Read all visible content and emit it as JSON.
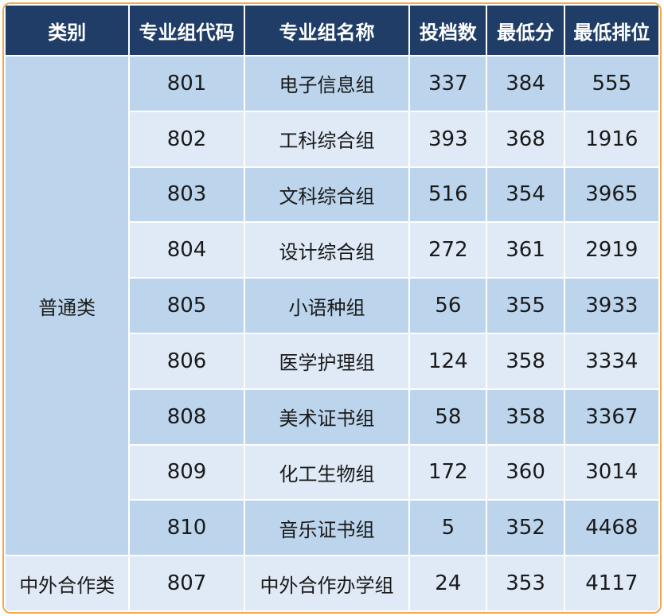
{
  "headers": {
    "category": "类别",
    "code": "专业组代码",
    "name": "专业组名称",
    "count": "投档数",
    "min_score": "最低分",
    "min_rank": "最低排位"
  },
  "categories": {
    "general": "普通类",
    "sino_foreign": "中外合作类"
  },
  "rows": [
    {
      "code": "801",
      "name": "电子信息组",
      "count": "337",
      "min_score": "384",
      "min_rank": "555"
    },
    {
      "code": "802",
      "name": "工科综合组",
      "count": "393",
      "min_score": "368",
      "min_rank": "1916"
    },
    {
      "code": "803",
      "name": "文科综合组",
      "count": "516",
      "min_score": "354",
      "min_rank": "3965"
    },
    {
      "code": "804",
      "name": "设计综合组",
      "count": "272",
      "min_score": "361",
      "min_rank": "2919"
    },
    {
      "code": "805",
      "name": "小语种组",
      "count": "56",
      "min_score": "355",
      "min_rank": "3933"
    },
    {
      "code": "806",
      "name": "医学护理组",
      "count": "124",
      "min_score": "358",
      "min_rank": "3334"
    },
    {
      "code": "808",
      "name": "美术证书组",
      "count": "58",
      "min_score": "358",
      "min_rank": "3367"
    },
    {
      "code": "809",
      "name": "化工生物组",
      "count": "172",
      "min_score": "360",
      "min_rank": "3014"
    },
    {
      "code": "810",
      "name": "音乐证书组",
      "count": "5",
      "min_score": "352",
      "min_rank": "4468"
    },
    {
      "code": "807",
      "name": "中外合作办学组",
      "count": "24",
      "min_score": "353",
      "min_rank": "4117"
    }
  ],
  "colors": {
    "header_bg": "#1f3d66",
    "row_dark": "#bcd5ec",
    "row_light": "#dfeaf6",
    "border": "#f0a94a"
  }
}
